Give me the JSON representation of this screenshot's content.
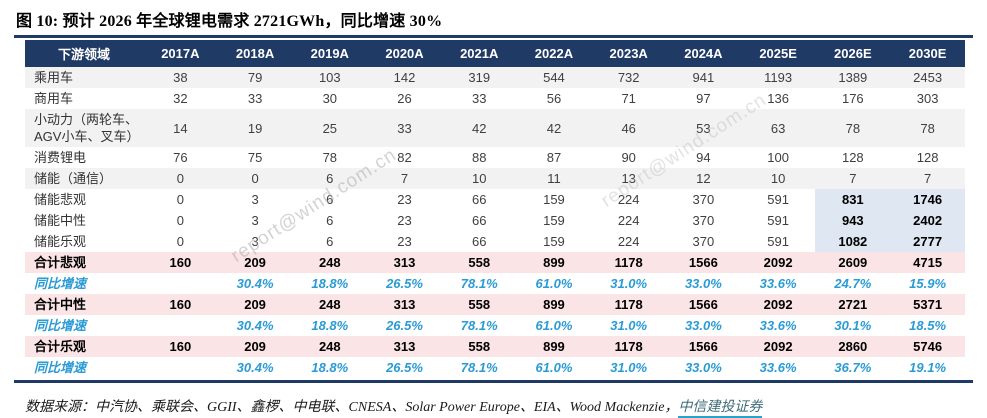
{
  "page": {
    "title": "图 10: 预计 2026 年全球锂电需求 2721GWh，同比增速 30%",
    "watermark": "report@wind.com.cn",
    "footer": {
      "prefix": "数据来源：中汽协、乘联会、GGII、鑫椤、中电联、CNESA、Solar Power Europe、EIA、Wood Mackenzie，",
      "publisher": "中信建投证券"
    }
  },
  "colors": {
    "header_bg": "#1F3A64",
    "rule": "#1F3A64",
    "stripe": "#F2F2F2",
    "total_bg": "#FBE4E5",
    "highlight_bg": "#DEE7F2",
    "growth_text": "#2A9BD5",
    "publisher_underline": "#29A3C9"
  },
  "chart_data": {
    "type": "table",
    "title": "图 10: 预计 2026 年全球锂电需求 2721GWh，同比增速 30%",
    "columns": [
      "下游领域",
      "2017A",
      "2018A",
      "2019A",
      "2020A",
      "2021A",
      "2022A",
      "2023A",
      "2024A",
      "2025E",
      "2026E",
      "2030E"
    ],
    "rows": [
      {
        "label": "乘用车",
        "style": "stripe",
        "values": [
          "38",
          "79",
          "103",
          "142",
          "319",
          "544",
          "732",
          "941",
          "1193",
          "1389",
          "2453"
        ]
      },
      {
        "label": "商用车",
        "style": "plain",
        "values": [
          "32",
          "33",
          "30",
          "26",
          "33",
          "56",
          "71",
          "97",
          "136",
          "176",
          "303"
        ]
      },
      {
        "label": "小动力（两轮车、AGV小车、叉车）",
        "style": "stripe",
        "values": [
          "14",
          "19",
          "25",
          "33",
          "42",
          "42",
          "46",
          "53",
          "63",
          "78",
          "78"
        ]
      },
      {
        "label": "消费锂电",
        "style": "plain",
        "values": [
          "76",
          "75",
          "78",
          "82",
          "88",
          "87",
          "90",
          "94",
          "100",
          "128",
          "128"
        ]
      },
      {
        "label": "储能（通信）",
        "style": "stripe",
        "values": [
          "0",
          "0",
          "6",
          "7",
          "10",
          "11",
          "13",
          "12",
          "10",
          "7",
          "7"
        ]
      },
      {
        "label": "储能悲观",
        "style": "plain",
        "highlight_last2": true,
        "values": [
          "0",
          "3",
          "6",
          "23",
          "66",
          "159",
          "224",
          "370",
          "591",
          "831",
          "1746"
        ]
      },
      {
        "label": "储能中性",
        "style": "plain",
        "highlight_last2": true,
        "values": [
          "0",
          "3",
          "6",
          "23",
          "66",
          "159",
          "224",
          "370",
          "591",
          "943",
          "2402"
        ]
      },
      {
        "label": "储能乐观",
        "style": "plain",
        "highlight_last2": true,
        "values": [
          "0",
          "3",
          "6",
          "23",
          "66",
          "159",
          "224",
          "370",
          "591",
          "1082",
          "2777"
        ]
      },
      {
        "label": "合计悲观",
        "style": "total",
        "values": [
          "160",
          "209",
          "248",
          "313",
          "558",
          "899",
          "1178",
          "1566",
          "2092",
          "2609",
          "4715"
        ]
      },
      {
        "label": "同比增速",
        "style": "growth",
        "values": [
          "",
          "30.4%",
          "18.8%",
          "26.5%",
          "78.1%",
          "61.0%",
          "31.0%",
          "33.0%",
          "33.6%",
          "24.7%",
          "15.9%"
        ]
      },
      {
        "label": "合计中性",
        "style": "total",
        "values": [
          "160",
          "209",
          "248",
          "313",
          "558",
          "899",
          "1178",
          "1566",
          "2092",
          "2721",
          "5371"
        ]
      },
      {
        "label": "同比增速",
        "style": "growth",
        "values": [
          "",
          "30.4%",
          "18.8%",
          "26.5%",
          "78.1%",
          "61.0%",
          "31.0%",
          "33.0%",
          "33.6%",
          "30.1%",
          "18.5%"
        ]
      },
      {
        "label": "合计乐观",
        "style": "total",
        "values": [
          "160",
          "209",
          "248",
          "313",
          "558",
          "899",
          "1178",
          "1566",
          "2092",
          "2860",
          "5746"
        ]
      },
      {
        "label": "同比增速",
        "style": "growth",
        "values": [
          "",
          "30.4%",
          "18.8%",
          "26.5%",
          "78.1%",
          "61.0%",
          "31.0%",
          "33.0%",
          "33.6%",
          "36.7%",
          "19.1%"
        ]
      }
    ]
  }
}
